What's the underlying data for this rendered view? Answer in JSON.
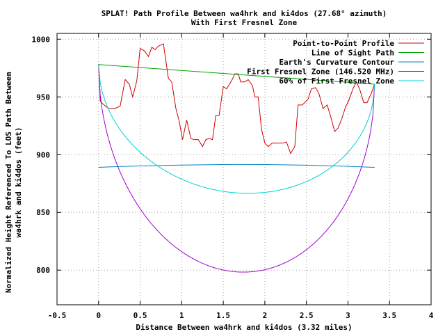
{
  "chart_data": {
    "type": "line",
    "title": "SPLAT! Path Profile Between wa4hrk and ki4dos (27.68° azimuth)",
    "subtitle": "With First Fresnel Zone",
    "xlabel": "Distance Between wa4hrk and ki4dos (3.32 miles)",
    "ylabel_line1": "Normalized Height Referenced To LOS Path Between",
    "ylabel_line2": "wa4hrk and ki4dos (feet)",
    "xlim": [
      -0.5,
      4
    ],
    "ylim": [
      770,
      1005
    ],
    "x_ticks": [
      -0.5,
      0,
      0.5,
      1,
      1.5,
      2,
      2.5,
      3,
      3.5,
      4
    ],
    "x_tick_labels": [
      "-0.5",
      "0",
      "0.5",
      "1",
      "1.5",
      "2",
      "2.5",
      "3",
      "3.5",
      "4"
    ],
    "y_ticks": [
      800,
      850,
      900,
      950,
      1000
    ],
    "y_tick_labels": [
      "800",
      "850",
      "900",
      "950",
      "1000"
    ],
    "grid": true,
    "legend_position": "top-right",
    "series": [
      {
        "name": "Point-to-Point Profile",
        "color": "#cc0000",
        "points": [
          [
            0.0,
            978
          ],
          [
            0.02,
            946
          ],
          [
            0.05,
            944
          ],
          [
            0.12,
            940
          ],
          [
            0.2,
            940
          ],
          [
            0.26,
            942
          ],
          [
            0.32,
            965
          ],
          [
            0.37,
            961
          ],
          [
            0.41,
            950
          ],
          [
            0.46,
            964
          ],
          [
            0.5,
            992
          ],
          [
            0.55,
            990
          ],
          [
            0.6,
            985
          ],
          [
            0.64,
            993
          ],
          [
            0.68,
            991
          ],
          [
            0.72,
            994
          ],
          [
            0.78,
            996
          ],
          [
            0.84,
            966
          ],
          [
            0.88,
            963
          ],
          [
            0.93,
            940
          ],
          [
            0.97,
            929
          ],
          [
            1.01,
            913
          ],
          [
            1.06,
            930
          ],
          [
            1.11,
            914
          ],
          [
            1.15,
            913
          ],
          [
            1.2,
            913
          ],
          [
            1.25,
            907
          ],
          [
            1.29,
            913
          ],
          [
            1.33,
            914
          ],
          [
            1.37,
            913
          ],
          [
            1.41,
            934
          ],
          [
            1.45,
            934
          ],
          [
            1.5,
            959
          ],
          [
            1.54,
            957
          ],
          [
            1.6,
            964
          ],
          [
            1.64,
            970
          ],
          [
            1.68,
            970
          ],
          [
            1.71,
            963
          ],
          [
            1.76,
            963
          ],
          [
            1.8,
            965
          ],
          [
            1.85,
            960
          ],
          [
            1.88,
            950
          ],
          [
            1.92,
            950
          ],
          [
            1.96,
            922
          ],
          [
            2.0,
            910
          ],
          [
            2.04,
            907
          ],
          [
            2.09,
            910
          ],
          [
            2.15,
            910
          ],
          [
            2.22,
            910
          ],
          [
            2.26,
            911
          ],
          [
            2.31,
            901
          ],
          [
            2.36,
            907
          ],
          [
            2.4,
            943
          ],
          [
            2.45,
            943
          ],
          [
            2.52,
            948
          ],
          [
            2.56,
            957
          ],
          [
            2.61,
            958
          ],
          [
            2.65,
            953
          ],
          [
            2.7,
            940
          ],
          [
            2.75,
            943
          ],
          [
            2.8,
            931
          ],
          [
            2.84,
            920
          ],
          [
            2.88,
            923
          ],
          [
            2.92,
            930
          ],
          [
            2.97,
            941
          ],
          [
            3.01,
            947
          ],
          [
            3.06,
            957
          ],
          [
            3.1,
            963
          ],
          [
            3.14,
            957
          ],
          [
            3.19,
            945
          ],
          [
            3.23,
            945
          ],
          [
            3.28,
            953
          ],
          [
            3.32,
            961
          ]
        ]
      },
      {
        "name": "Line of Sight Path",
        "color": "#00a000",
        "points": [
          [
            0.0,
            978
          ],
          [
            3.32,
            961
          ]
        ]
      },
      {
        "name": "Earth's Curvature Contour",
        "color": "#0080c0",
        "points": [
          [
            0.0,
            889
          ],
          [
            0.2,
            889.6
          ],
          [
            0.5,
            890.2
          ],
          [
            1.0,
            891.0
          ],
          [
            1.5,
            891.4
          ],
          [
            1.66,
            891.5
          ],
          [
            2.0,
            891.4
          ],
          [
            2.5,
            890.9
          ],
          [
            3.0,
            889.9
          ],
          [
            3.32,
            889
          ]
        ]
      },
      {
        "name": "First Fresnel Zone (146.520 MHz)",
        "color": "#a000d0",
        "los": [
          978,
          961
        ],
        "fresnel_max_ft": 171,
        "sample_step": 0.02
      },
      {
        "name": "60% of First Fresnel Zone",
        "color": "#00d0d0",
        "los": [
          978,
          961
        ],
        "fresnel_max_ft": 102.6,
        "sample_step": 0.02
      }
    ]
  }
}
